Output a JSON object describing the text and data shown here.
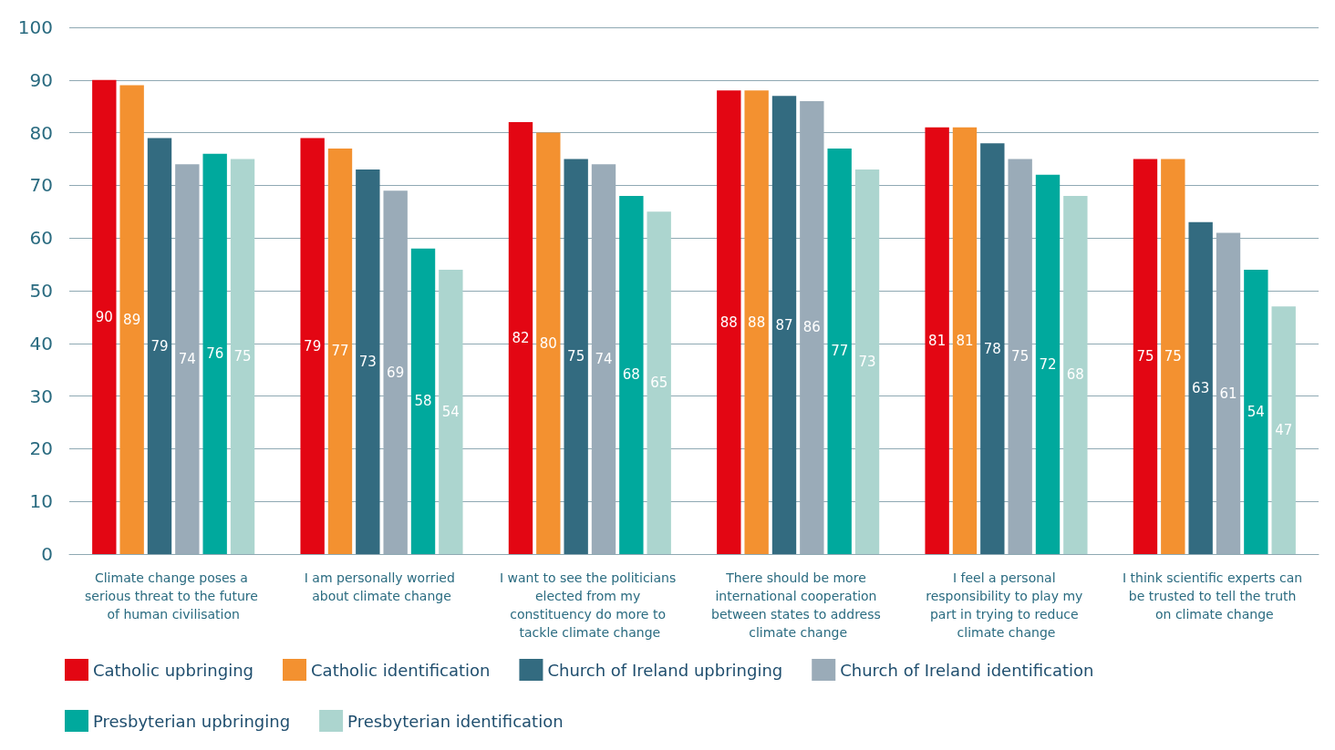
{
  "chart_data": {
    "type": "bar",
    "categories": [
      "Climate change poses a serious threat to the future of human civilisation",
      "I am personally worried about climate change",
      "I want to see the politicians elected from my constituency do more to tackle climate change",
      "There should be more international cooperation between states to address climate change",
      "I feel a personal responsibility to play my part in trying to reduce climate change",
      "I think scientific experts can be trusted to tell the truth on climate change"
    ],
    "series": [
      {
        "name": "Catholic upbringing",
        "color": "#e30613",
        "values": [
          90,
          79,
          82,
          88,
          81,
          75
        ]
      },
      {
        "name": "Catholic identification",
        "color": "#f39130",
        "values": [
          89,
          77,
          80,
          88,
          81,
          75
        ]
      },
      {
        "name": "Church of Ireland upbringing",
        "color": "#336b80",
        "values": [
          79,
          73,
          75,
          87,
          78,
          63
        ]
      },
      {
        "name": "Church of Ireland identification",
        "color": "#9aabb8",
        "values": [
          74,
          69,
          74,
          86,
          75,
          61
        ]
      },
      {
        "name": "Presbyterian upbringing",
        "color": "#00a99d",
        "values": [
          76,
          58,
          68,
          77,
          72,
          54
        ]
      },
      {
        "name": "Presbyterian identification",
        "color": "#acd5cf",
        "values": [
          75,
          54,
          65,
          73,
          68,
          47
        ]
      }
    ],
    "ylim": [
      0,
      100
    ],
    "yticks": [
      0,
      10,
      20,
      30,
      40,
      50,
      60,
      70,
      80,
      90,
      100
    ],
    "grid": "y",
    "legend": "bottom left",
    "data_labels": true
  }
}
